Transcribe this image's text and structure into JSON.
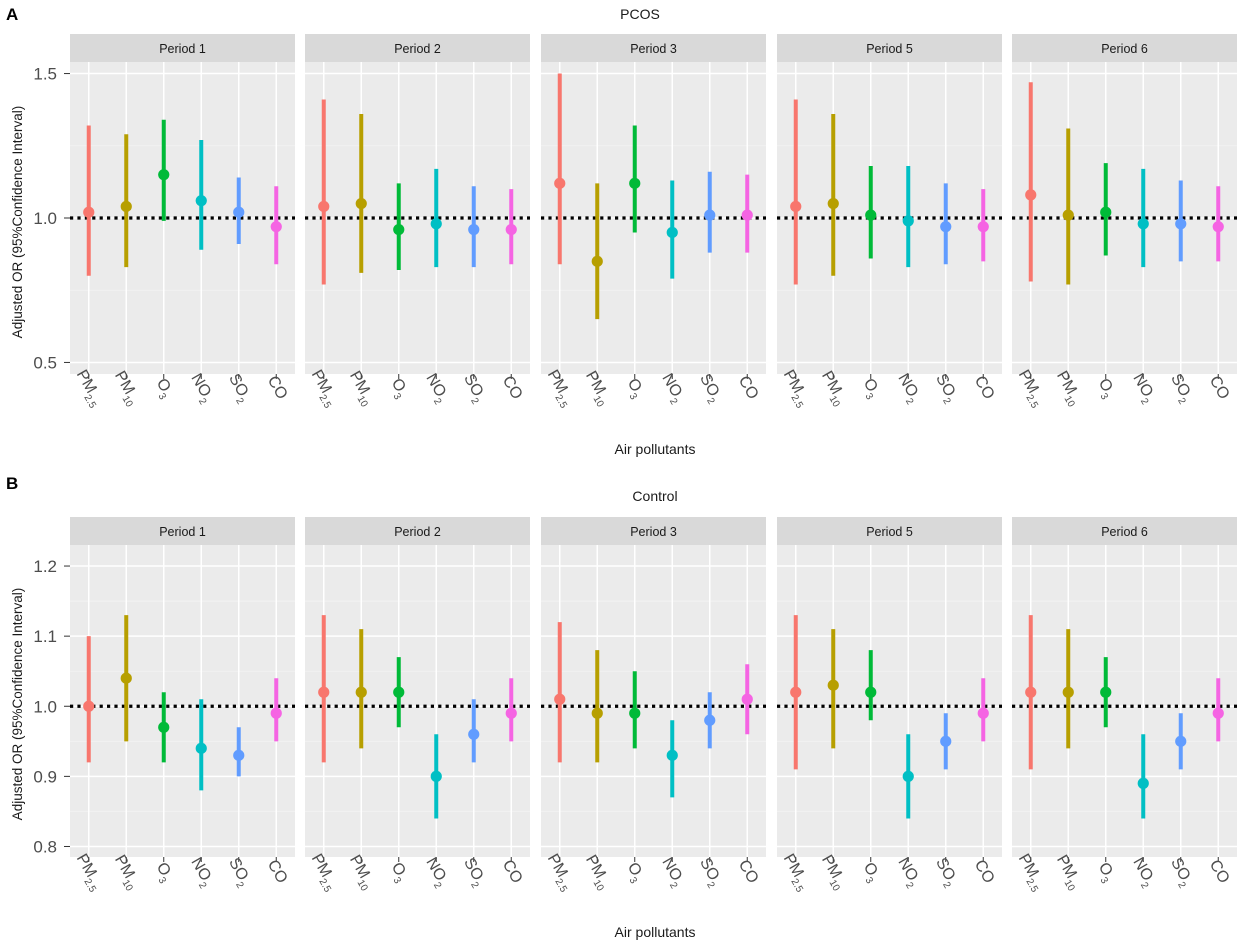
{
  "colors": {
    "panel_bg": "#ebebeb",
    "strip_bg": "#d9d9d9",
    "grid_major": "#ffffff",
    "grid_minor": "#f2f2f2",
    "reference_line": "#000000",
    "text": "#1a1a1a",
    "axis_text": "#4d4d4d"
  },
  "chart_data": [
    {
      "type": "pointrange",
      "label": "A",
      "title": "PCOS",
      "xlabel": "Air pollutants",
      "ylabel": "Adjusted OR (95%Confidence Interval)",
      "ylim": [
        0.46,
        1.54
      ],
      "yticks": [
        0.5,
        1.0,
        1.5
      ],
      "ytick_labels": [
        "0.5",
        "1.0",
        "1.5"
      ],
      "reference_y": 1.0,
      "categories": [
        {
          "main": "PM",
          "sub": "2.5"
        },
        {
          "main": "PM",
          "sub": "10"
        },
        {
          "main": "O",
          "sub": "3"
        },
        {
          "main": "NO",
          "sub": "2"
        },
        {
          "main": "SO",
          "sub": "2"
        },
        {
          "main": "CO",
          "sub": ""
        }
      ],
      "series_colors": [
        "#f8766d",
        "#b79f00",
        "#00ba38",
        "#00bfc4",
        "#619cff",
        "#f564e3"
      ],
      "facets": [
        {
          "label": "Period 1",
          "est": [
            1.02,
            1.04,
            1.15,
            1.06,
            1.02,
            0.97
          ],
          "lo": [
            0.8,
            0.83,
            0.99,
            0.89,
            0.91,
            0.84
          ],
          "hi": [
            1.32,
            1.29,
            1.34,
            1.27,
            1.14,
            1.11
          ]
        },
        {
          "label": "Period 2",
          "est": [
            1.04,
            1.05,
            0.96,
            0.98,
            0.96,
            0.96
          ],
          "lo": [
            0.77,
            0.81,
            0.82,
            0.83,
            0.83,
            0.84
          ],
          "hi": [
            1.41,
            1.36,
            1.12,
            1.17,
            1.11,
            1.1
          ]
        },
        {
          "label": "Period 3",
          "est": [
            1.12,
            0.85,
            1.12,
            0.95,
            1.01,
            1.01
          ],
          "lo": [
            0.84,
            0.65,
            0.95,
            0.79,
            0.88,
            0.88
          ],
          "hi": [
            1.5,
            1.12,
            1.32,
            1.13,
            1.16,
            1.15
          ]
        },
        {
          "label": "Period 5",
          "est": [
            1.04,
            1.05,
            1.01,
            0.99,
            0.97,
            0.97
          ],
          "lo": [
            0.77,
            0.8,
            0.86,
            0.83,
            0.84,
            0.85
          ],
          "hi": [
            1.41,
            1.36,
            1.18,
            1.18,
            1.12,
            1.1
          ]
        },
        {
          "label": "Period 6",
          "est": [
            1.08,
            1.01,
            1.02,
            0.98,
            0.98,
            0.97
          ],
          "lo": [
            0.78,
            0.77,
            0.87,
            0.83,
            0.85,
            0.85
          ],
          "hi": [
            1.47,
            1.31,
            1.19,
            1.17,
            1.13,
            1.11
          ]
        }
      ]
    },
    {
      "type": "pointrange",
      "label": "B",
      "title": "Control",
      "xlabel": "Air pollutants",
      "ylabel": "Adjusted OR (95%Confidence Interval)",
      "ylim": [
        0.785,
        1.23
      ],
      "yticks": [
        0.8,
        0.9,
        1.0,
        1.1,
        1.2
      ],
      "ytick_labels": [
        "0.8",
        "0.9",
        "1.0",
        "1.1",
        "1.2"
      ],
      "reference_y": 1.0,
      "categories": [
        {
          "main": "PM",
          "sub": "2.5"
        },
        {
          "main": "PM",
          "sub": "10"
        },
        {
          "main": "O",
          "sub": "3"
        },
        {
          "main": "NO",
          "sub": "2"
        },
        {
          "main": "SO",
          "sub": "2"
        },
        {
          "main": "CO",
          "sub": ""
        }
      ],
      "series_colors": [
        "#f8766d",
        "#b79f00",
        "#00ba38",
        "#00bfc4",
        "#619cff",
        "#f564e3"
      ],
      "facets": [
        {
          "label": "Period 1",
          "est": [
            1.0,
            1.04,
            0.97,
            0.94,
            0.93,
            0.99
          ],
          "lo": [
            0.92,
            0.95,
            0.92,
            0.88,
            0.9,
            0.95
          ],
          "hi": [
            1.1,
            1.13,
            1.02,
            1.01,
            0.97,
            1.04
          ]
        },
        {
          "label": "Period 2",
          "est": [
            1.02,
            1.02,
            1.02,
            0.9,
            0.96,
            0.99
          ],
          "lo": [
            0.92,
            0.94,
            0.97,
            0.84,
            0.92,
            0.95
          ],
          "hi": [
            1.13,
            1.11,
            1.07,
            0.96,
            1.01,
            1.04
          ]
        },
        {
          "label": "Period 3",
          "est": [
            1.01,
            0.99,
            0.99,
            0.93,
            0.98,
            1.01
          ],
          "lo": [
            0.92,
            0.92,
            0.94,
            0.87,
            0.94,
            0.96
          ],
          "hi": [
            1.12,
            1.08,
            1.05,
            0.98,
            1.02,
            1.06
          ]
        },
        {
          "label": "Period 5",
          "est": [
            1.02,
            1.03,
            1.02,
            0.9,
            0.95,
            0.99
          ],
          "lo": [
            0.91,
            0.94,
            0.98,
            0.84,
            0.91,
            0.95
          ],
          "hi": [
            1.13,
            1.11,
            1.08,
            0.96,
            0.99,
            1.04
          ]
        },
        {
          "label": "Period 6",
          "est": [
            1.02,
            1.02,
            1.02,
            0.89,
            0.95,
            0.99
          ],
          "lo": [
            0.91,
            0.94,
            0.97,
            0.84,
            0.91,
            0.95
          ],
          "hi": [
            1.13,
            1.11,
            1.07,
            0.96,
            0.99,
            1.04
          ]
        }
      ]
    }
  ]
}
